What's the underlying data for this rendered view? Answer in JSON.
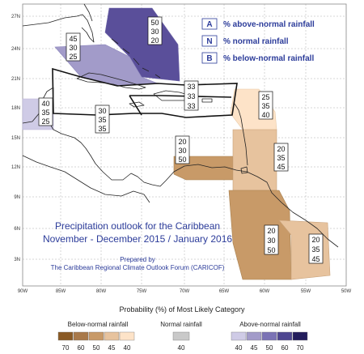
{
  "map": {
    "lat_ticks": [
      "27N",
      "24N",
      "21N",
      "18N",
      "15N",
      "12N",
      "9N",
      "6N",
      "3N"
    ],
    "lon_ticks": [
      "90W",
      "85W",
      "80W",
      "75W",
      "70W",
      "65W",
      "60W",
      "55W",
      "50W"
    ]
  },
  "legend_box": {
    "rows": [
      {
        "letter": "A",
        "text": "% above-normal rainfall"
      },
      {
        "letter": "N",
        "text": "% normal rainfall"
      },
      {
        "letter": "B",
        "text": "% below-normal rainfall"
      }
    ]
  },
  "title": {
    "line1": "Precipitation outlook for the Caribbean",
    "line2": "November - December 2015 / January 2016",
    "prepared1": "Prepared by",
    "prepared2": "The Caribbean Regional Climate Outlook Forum (CARICOF)"
  },
  "zones": [
    {
      "id": "bahamas",
      "values": [
        "50",
        "30",
        "20"
      ],
      "category": "above",
      "probability": 50,
      "color": "#5a4f9a"
    },
    {
      "id": "cuba-west",
      "values": [
        "45",
        "30",
        "25"
      ],
      "category": "above",
      "probability": 45,
      "color": "#a29bc9"
    },
    {
      "id": "yucatan",
      "values": [
        "40",
        "35",
        "25"
      ],
      "category": "above",
      "probability": 40,
      "color": "#cfcbe6"
    },
    {
      "id": "jamaica",
      "values": [
        "30",
        "35",
        "35"
      ],
      "category": "none",
      "probability": 35,
      "color": "#ffffff"
    },
    {
      "id": "hispaniola",
      "values": [
        "33",
        "33",
        "33"
      ],
      "category": "none",
      "probability": 33,
      "color": "#ffffff"
    },
    {
      "id": "leeward",
      "values": [
        "25",
        "35",
        "40"
      ],
      "category": "below",
      "probability": 40,
      "color": "#fde3c8"
    },
    {
      "id": "abc-islands",
      "values": [
        "20",
        "30",
        "50"
      ],
      "category": "below",
      "probability": 50,
      "color": "#c89a68"
    },
    {
      "id": "trinidad",
      "values": [
        "20",
        "35",
        "45"
      ],
      "category": "below",
      "probability": 45,
      "color": "#e7c39e"
    },
    {
      "id": "guyana",
      "values": [
        "20",
        "30",
        "50"
      ],
      "category": "below",
      "probability": 50,
      "color": "#c89a68"
    },
    {
      "id": "guianas",
      "values": [
        "20",
        "35",
        "45"
      ],
      "category": "below",
      "probability": 45,
      "color": "#e7c39e"
    }
  ],
  "colorbar": {
    "title": "Probability (%) of Most Likely Category",
    "below": {
      "label": "Below-normal rainfall",
      "ticks": [
        "70",
        "60",
        "50",
        "45",
        "40"
      ],
      "colors": [
        "#8a5a25",
        "#a8794a",
        "#c89a68",
        "#e7c39e",
        "#fde3c8"
      ]
    },
    "normal": {
      "label": "Normal rainfall",
      "ticks": [
        "40"
      ],
      "colors": [
        "#c9c9c9"
      ]
    },
    "above": {
      "label": "Above-normal rainfall",
      "ticks": [
        "40",
        "45",
        "50",
        "60",
        "70"
      ],
      "colors": [
        "#cfcbe6",
        "#a29bc9",
        "#7b73b5",
        "#4e4690",
        "#231d5c"
      ]
    }
  }
}
